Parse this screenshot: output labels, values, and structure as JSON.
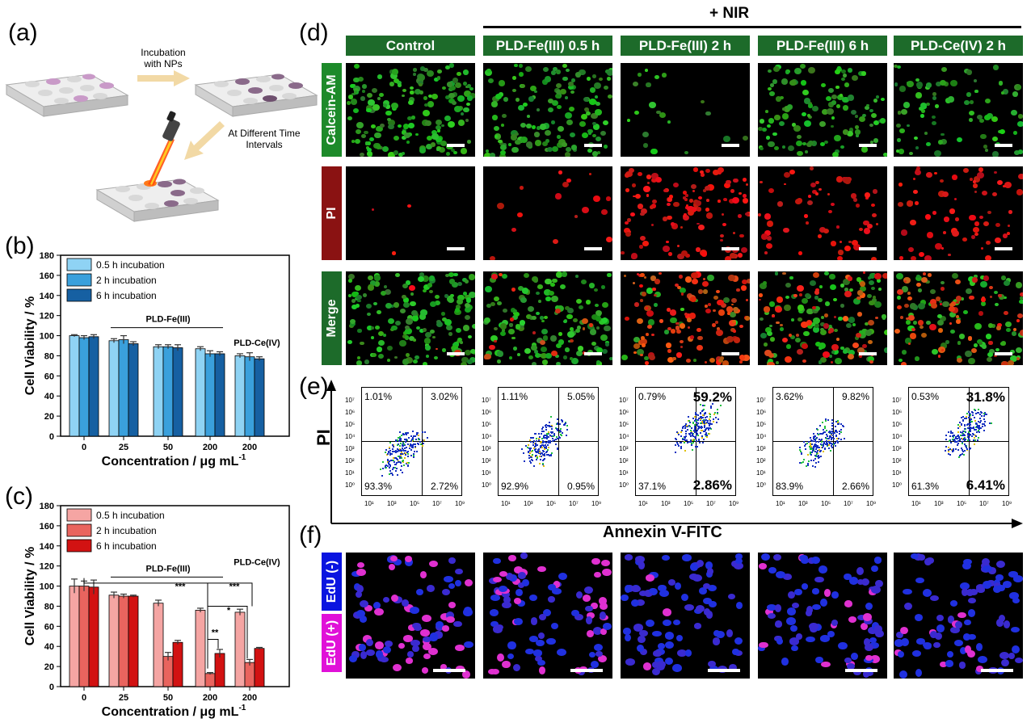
{
  "panel_labels": {
    "a": "(a)",
    "b": "(b)",
    "c": "(c)",
    "d": "(d)",
    "e": "(e)",
    "f": "(f)"
  },
  "schematic": {
    "step1": "Incubation with NPs",
    "step2": "At Different Time Intervals"
  },
  "nir_label": "+ NIR",
  "columns": [
    "Control",
    "PLD-Fe(III) 0.5 h",
    "PLD-Fe(III) 2 h",
    "PLD-Fe(III) 6 h",
    "PLD-Ce(IV) 2 h"
  ],
  "rows_d": [
    "Calcein-AM",
    "PI",
    "Merge"
  ],
  "rows_d_colors": {
    "Calcein-AM": "#1d8a2a",
    "PI": "#8a1212",
    "Merge": "#1d6b2a"
  },
  "rows_f": [
    "EdU (-)",
    "EdU (+)"
  ],
  "rows_f_colors": {
    "EdU (-)": "#0a14e0",
    "EdU (+)": "#e010d8"
  },
  "flow": {
    "ylabel": "PI",
    "xlabel": "Annexin V-FITC",
    "yticks": [
      "10⁷",
      "10⁶",
      "10⁵",
      "10⁴",
      "10³",
      "10²",
      "10¹",
      "10⁰"
    ],
    "xticks": [
      "10¹",
      "10³",
      "10⁵",
      "10⁷",
      "10⁹"
    ],
    "quadrants": [
      {
        "ul": "1.01%",
        "ur": "3.02%",
        "ll": "93.3%",
        "lr": "2.72%"
      },
      {
        "ul": "1.11%",
        "ur": "5.05%",
        "ll": "92.9%",
        "lr": "0.95%"
      },
      {
        "ul": "0.79%",
        "ur": "59.2%",
        "ll": "37.1%",
        "lr": "2.86%"
      },
      {
        "ul": "3.62%",
        "ur": "9.82%",
        "ll": "83.9%",
        "lr": "2.66%"
      },
      {
        "ul": "0.53%",
        "ur": "31.8%",
        "ll": "61.3%",
        "lr": "6.41%"
      }
    ]
  },
  "chart_data": [
    {
      "type": "bar",
      "panel": "b",
      "title": "",
      "xlabel": "Concentration / μg mL",
      "xlabel_sup": "-1",
      "ylabel": "Cell Viability / %",
      "ylim": [
        0,
        180
      ],
      "yticks": [
        0,
        20,
        40,
        60,
        80,
        100,
        120,
        140,
        160,
        180
      ],
      "categories": [
        "0",
        "25",
        "50",
        "200",
        "200"
      ],
      "series": [
        {
          "name": "0.5 h incubation",
          "color": "#8fd3f4",
          "values": [
            100,
            95,
            89,
            87,
            80
          ],
          "errors": [
            1,
            2,
            2,
            2,
            2
          ]
        },
        {
          "name": "2 h incubation",
          "color": "#3aa0dc",
          "values": [
            98,
            96,
            89,
            82,
            79
          ],
          "errors": [
            2,
            4,
            2,
            3,
            4
          ]
        },
        {
          "name": "6 h incubation",
          "color": "#1660a2",
          "values": [
            99,
            92,
            88,
            82,
            77
          ],
          "errors": [
            2,
            2,
            3,
            2,
            2
          ]
        }
      ],
      "annotations": {
        "bracket_label": "PLD-Fe(III)",
        "ce_label": "PLD-Ce(IV)"
      },
      "legend": "top-left"
    },
    {
      "type": "bar",
      "panel": "c",
      "title": "",
      "xlabel": "Concentration / μg mL",
      "xlabel_sup": "-1",
      "ylabel": "Cell Viability / %",
      "ylim": [
        0,
        180
      ],
      "yticks": [
        0,
        20,
        40,
        60,
        80,
        100,
        120,
        140,
        160,
        180
      ],
      "categories": [
        "0",
        "25",
        "50",
        "200",
        "200"
      ],
      "series": [
        {
          "name": "0.5 h incubation",
          "color": "#f5a5a3",
          "values": [
            100,
            91,
            83,
            76,
            74
          ],
          "errors": [
            7,
            3,
            3,
            2,
            3
          ]
        },
        {
          "name": "2 h incubation",
          "color": "#e9645e",
          "values": [
            100,
            90,
            30,
            13,
            24
          ],
          "errors": [
            5,
            2,
            4,
            1,
            3
          ]
        },
        {
          "name": "6 h incubation",
          "color": "#d21212",
          "values": [
            99,
            90,
            44,
            33,
            38
          ],
          "errors": [
            7,
            1,
            2,
            4,
            1
          ]
        }
      ],
      "annotations": {
        "bracket_label": "PLD-Fe(III)",
        "ce_label": "PLD-Ce(IV)",
        "sig": [
          "***",
          "***",
          "*",
          "**"
        ]
      },
      "legend": "top-left"
    }
  ]
}
